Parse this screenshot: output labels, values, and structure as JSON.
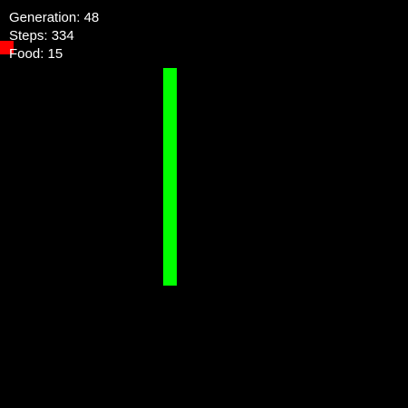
{
  "hud": {
    "generation_label": "Generation:",
    "generation_value": "48",
    "steps_label": "Steps:",
    "steps_value": "334",
    "food_label": "Food:",
    "food_value": "15"
  },
  "colors": {
    "background": "#000000",
    "snake": "#00ff00",
    "food": "#ff0000",
    "hud_text": "#ffffff"
  }
}
